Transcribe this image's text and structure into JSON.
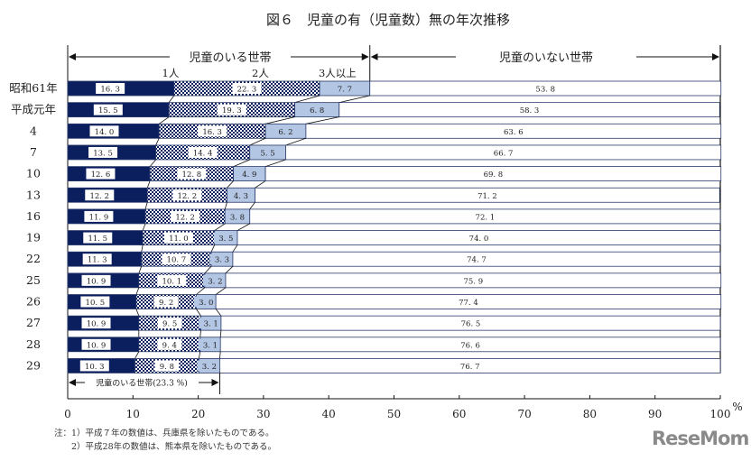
{
  "chart_data": {
    "type": "bar",
    "orientation": "horizontal",
    "stacked": true,
    "title": "図６　児童の有（児童数）無の年次推移",
    "categories": [
      "昭和61年",
      "平成元年",
      "4",
      "7",
      "10",
      "13",
      "16",
      "19",
      "22",
      "25",
      "26",
      "27",
      "28",
      "29"
    ],
    "series": [
      {
        "name": "1人",
        "color": "#0b1f5e",
        "values": [
          16.3,
          15.5,
          14.0,
          13.5,
          12.6,
          12.2,
          11.9,
          11.5,
          11.3,
          10.9,
          10.5,
          10.9,
          10.9,
          10.3
        ]
      },
      {
        "name": "2人",
        "color": "checker",
        "values": [
          22.3,
          19.3,
          16.3,
          14.4,
          12.8,
          12.2,
          12.2,
          11.0,
          10.7,
          10.1,
          9.2,
          9.5,
          9.4,
          9.8
        ]
      },
      {
        "name": "3人以上",
        "color": "#b3c6e3",
        "values": [
          7.7,
          6.8,
          6.2,
          5.5,
          4.9,
          4.3,
          3.8,
          3.5,
          3.3,
          3.2,
          3.0,
          3.1,
          3.1,
          3.2
        ]
      },
      {
        "name": "児童のいない世帯",
        "color": "#ffffff",
        "values": [
          53.8,
          58.3,
          63.6,
          66.7,
          69.8,
          71.2,
          72.1,
          74.0,
          74.7,
          75.9,
          77.4,
          76.5,
          76.6,
          76.7
        ]
      }
    ],
    "group_labels": {
      "with_children": "児童のいる世帯",
      "without_children": "児童のいない世帯"
    },
    "bracket_label": "児童のいる世帯(23.3 %)",
    "xlim": [
      0,
      100
    ],
    "xticks": [
      "0",
      "10",
      "20",
      "30",
      "40",
      "50",
      "60",
      "70",
      "80",
      "90",
      "100"
    ],
    "xunit": "%",
    "grid": false
  },
  "notes": [
    "注：1）平成７年の数値は、兵庫県を除いたものである。",
    "　　2）平成28年の数値は、熊本県を除いたものである。"
  ],
  "logo": "ReseMom"
}
